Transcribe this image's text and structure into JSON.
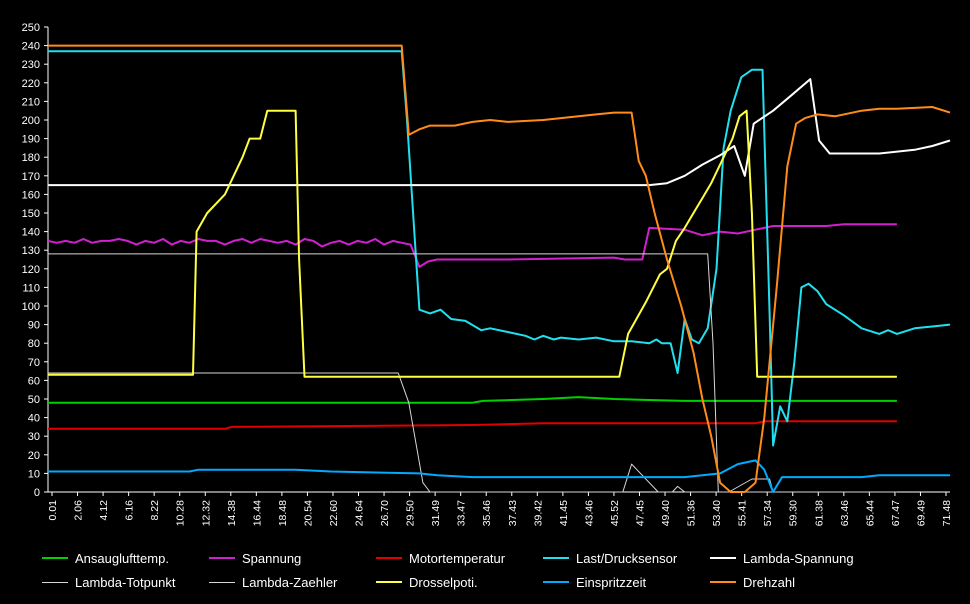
{
  "chart_data": {
    "type": "line",
    "ylim": [
      0,
      250
    ],
    "yticks": [
      0,
      10,
      20,
      30,
      40,
      50,
      60,
      70,
      80,
      90,
      100,
      110,
      120,
      130,
      140,
      150,
      160,
      170,
      180,
      190,
      200,
      210,
      220,
      230,
      240,
      250
    ],
    "grid": false,
    "legend_position": "bottom",
    "xtick_labels": [
      "0.01",
      "2.06",
      "4.12",
      "6.16",
      "8.22",
      "10.28",
      "12.32",
      "14.38",
      "16.44",
      "18.48",
      "20.54",
      "22.60",
      "24.64",
      "26.70",
      "29.50",
      "31.49",
      "33.47",
      "35.46",
      "37.43",
      "39.42",
      "41.45",
      "43.46",
      "45.52",
      "47.45",
      "49.40",
      "51.36",
      "53.40",
      "55.41",
      "57.34",
      "59.30",
      "61.38",
      "63.46",
      "65.44",
      "67.47",
      "69.49",
      "71.48"
    ],
    "series": [
      {
        "name": "Ansaugluftttemp.",
        "color": "#00d000",
        "points": [
          [
            0,
            48
          ],
          [
            24,
            48
          ],
          [
            24.6,
            49
          ],
          [
            28,
            50
          ],
          [
            30,
            51
          ],
          [
            32,
            50
          ],
          [
            36,
            49
          ],
          [
            48,
            49
          ]
        ]
      },
      {
        "name": "Spannung",
        "color": "#d020d0",
        "points": [
          [
            0,
            135
          ],
          [
            0.5,
            134
          ],
          [
            1,
            135
          ],
          [
            1.5,
            134
          ],
          [
            2,
            136
          ],
          [
            2.5,
            134
          ],
          [
            3,
            135
          ],
          [
            3.5,
            135
          ],
          [
            4,
            136
          ],
          [
            4.5,
            135
          ],
          [
            5,
            133
          ],
          [
            5.5,
            135
          ],
          [
            6,
            134
          ],
          [
            6.5,
            136
          ],
          [
            7,
            133
          ],
          [
            7.5,
            135
          ],
          [
            8,
            134
          ],
          [
            8.5,
            136
          ],
          [
            9,
            135
          ],
          [
            9.5,
            135
          ],
          [
            10,
            133
          ],
          [
            10.5,
            135
          ],
          [
            11,
            136
          ],
          [
            11.5,
            134
          ],
          [
            12,
            136
          ],
          [
            12.5,
            135
          ],
          [
            13,
            134
          ],
          [
            13.5,
            135
          ],
          [
            14,
            133
          ],
          [
            14.5,
            136
          ],
          [
            15,
            135
          ],
          [
            15.5,
            132
          ],
          [
            16,
            134
          ],
          [
            16.5,
            135
          ],
          [
            17,
            133
          ],
          [
            17.5,
            135
          ],
          [
            18,
            134
          ],
          [
            18.5,
            136
          ],
          [
            19,
            133
          ],
          [
            19.5,
            135
          ],
          [
            20,
            134
          ],
          [
            20.5,
            133
          ],
          [
            21,
            121
          ],
          [
            21.5,
            124
          ],
          [
            22,
            125
          ],
          [
            26,
            125
          ],
          [
            32,
            126
          ],
          [
            32.6,
            125
          ],
          [
            33.6,
            125
          ],
          [
            34,
            142
          ],
          [
            36,
            141
          ],
          [
            37,
            138
          ],
          [
            38,
            140
          ],
          [
            39,
            139
          ],
          [
            40,
            141
          ],
          [
            41,
            143
          ],
          [
            44,
            143
          ],
          [
            45,
            144
          ],
          [
            48,
            144
          ]
        ]
      },
      {
        "name": "Motortemperatur",
        "color": "#e00000",
        "points": [
          [
            0,
            34
          ],
          [
            10,
            34
          ],
          [
            10.4,
            35
          ],
          [
            24,
            36
          ],
          [
            28,
            37
          ],
          [
            40,
            37
          ],
          [
            40.5,
            38
          ],
          [
            48,
            38
          ]
        ]
      },
      {
        "name": "Last/Drucksensor",
        "color": "#20e0f0",
        "points": [
          [
            0,
            237
          ],
          [
            20,
            237
          ],
          [
            20.3,
            200
          ],
          [
            21,
            98
          ],
          [
            21.6,
            96
          ],
          [
            22.2,
            98
          ],
          [
            22.8,
            93
          ],
          [
            23.6,
            92
          ],
          [
            24.5,
            87
          ],
          [
            25,
            88
          ],
          [
            26,
            86
          ],
          [
            27,
            84
          ],
          [
            27.5,
            82
          ],
          [
            28,
            84
          ],
          [
            28.6,
            82
          ],
          [
            29,
            83
          ],
          [
            30,
            82
          ],
          [
            31,
            83
          ],
          [
            32,
            81
          ],
          [
            33,
            81
          ],
          [
            34,
            80
          ],
          [
            34.4,
            82
          ],
          [
            34.7,
            80
          ],
          [
            35.2,
            80
          ],
          [
            35.6,
            64
          ],
          [
            36,
            93
          ],
          [
            36.4,
            82
          ],
          [
            36.8,
            80
          ],
          [
            37.3,
            88
          ],
          [
            37.8,
            120
          ],
          [
            38.2,
            185
          ],
          [
            38.6,
            205
          ],
          [
            39.2,
            223
          ],
          [
            39.8,
            227
          ],
          [
            40.4,
            227
          ],
          [
            40.8,
            96
          ],
          [
            41,
            25
          ],
          [
            41.4,
            46
          ],
          [
            41.8,
            38
          ],
          [
            42.2,
            70
          ],
          [
            42.6,
            110
          ],
          [
            43,
            112
          ],
          [
            43.5,
            108
          ],
          [
            44,
            101
          ],
          [
            45,
            95
          ],
          [
            46,
            88
          ],
          [
            47,
            85
          ],
          [
            47.5,
            87
          ],
          [
            48,
            85
          ],
          [
            49,
            88
          ],
          [
            50,
            89
          ],
          [
            51,
            90
          ]
        ]
      },
      {
        "name": "Lambda-Spannung",
        "color": "#ffffff",
        "points": [
          [
            0,
            165
          ],
          [
            34,
            165
          ],
          [
            35,
            166
          ],
          [
            36,
            170
          ],
          [
            37,
            176
          ],
          [
            38,
            181
          ],
          [
            38.8,
            186
          ],
          [
            39.4,
            170
          ],
          [
            39.9,
            198
          ],
          [
            41,
            205
          ],
          [
            42,
            213
          ],
          [
            43.1,
            222
          ],
          [
            43.6,
            189
          ],
          [
            44.2,
            182
          ],
          [
            47,
            182
          ],
          [
            49,
            184
          ],
          [
            50,
            186
          ],
          [
            51,
            189
          ]
        ]
      },
      {
        "name": "Lambda-Totpunkt",
        "color": "#d8d8d8",
        "points": [
          [
            0,
            128
          ],
          [
            37.3,
            128
          ],
          [
            37.6,
            80
          ],
          [
            37.9,
            0
          ],
          [
            38.5,
            0
          ],
          [
            39.8,
            7
          ],
          [
            40.8,
            7
          ],
          [
            41,
            0
          ],
          [
            48,
            0
          ]
        ]
      },
      {
        "name": "Lambda-Zaehler",
        "color": "#d8d8d8",
        "points": [
          [
            0,
            64
          ],
          [
            19.8,
            64
          ],
          [
            20.4,
            48
          ],
          [
            21.2,
            5
          ],
          [
            21.6,
            0
          ],
          [
            32.5,
            0
          ],
          [
            33,
            15
          ],
          [
            34.5,
            0
          ],
          [
            35.3,
            0
          ],
          [
            35.6,
            3
          ],
          [
            36,
            0
          ],
          [
            48,
            0
          ]
        ]
      },
      {
        "name": "Drosselpoti.",
        "color": "#ffff40",
        "points": [
          [
            0,
            63
          ],
          [
            8.2,
            63
          ],
          [
            8.4,
            140
          ],
          [
            9,
            150
          ],
          [
            10,
            160
          ],
          [
            11,
            180
          ],
          [
            11.4,
            190
          ],
          [
            12,
            190
          ],
          [
            12.4,
            205
          ],
          [
            14,
            205
          ],
          [
            14.2,
            125
          ],
          [
            14.5,
            62
          ],
          [
            21,
            62
          ],
          [
            32.3,
            62
          ],
          [
            32.8,
            85
          ],
          [
            33.8,
            102
          ],
          [
            34.6,
            117
          ],
          [
            35,
            120
          ],
          [
            35.5,
            135
          ],
          [
            36,
            142
          ],
          [
            36.5,
            150
          ],
          [
            37,
            158
          ],
          [
            37.5,
            166
          ],
          [
            38,
            176
          ],
          [
            38.7,
            190
          ],
          [
            39.1,
            202
          ],
          [
            39.5,
            205
          ],
          [
            39.8,
            150
          ],
          [
            40.1,
            62
          ],
          [
            48,
            62
          ]
        ]
      },
      {
        "name": "Einspritzzeit",
        "color": "#00aaff",
        "points": [
          [
            0,
            11
          ],
          [
            8,
            11
          ],
          [
            8.5,
            12
          ],
          [
            14,
            12
          ],
          [
            16,
            11
          ],
          [
            21,
            10
          ],
          [
            22,
            9
          ],
          [
            24,
            8
          ],
          [
            36,
            8
          ],
          [
            37,
            9
          ],
          [
            38,
            10
          ],
          [
            39,
            15
          ],
          [
            40,
            17
          ],
          [
            40.5,
            12
          ],
          [
            41,
            0
          ],
          [
            41.5,
            8
          ],
          [
            44,
            8
          ],
          [
            46,
            8
          ],
          [
            47,
            9
          ],
          [
            51,
            9
          ]
        ]
      },
      {
        "name": "Drehzahl",
        "color": "#ff8c1a",
        "points": [
          [
            0,
            240
          ],
          [
            20,
            240
          ],
          [
            20.4,
            192
          ],
          [
            21,
            195
          ],
          [
            21.6,
            197
          ],
          [
            23,
            197
          ],
          [
            24,
            199
          ],
          [
            25,
            200
          ],
          [
            26,
            199
          ],
          [
            28,
            200
          ],
          [
            29,
            201
          ],
          [
            30,
            202
          ],
          [
            31,
            203
          ],
          [
            32,
            204
          ],
          [
            33,
            204
          ],
          [
            33.4,
            178
          ],
          [
            33.8,
            170
          ],
          [
            34.3,
            150
          ],
          [
            35,
            125
          ],
          [
            35.8,
            100
          ],
          [
            36.5,
            75
          ],
          [
            37,
            50
          ],
          [
            37.5,
            30
          ],
          [
            38,
            5
          ],
          [
            38.6,
            0
          ],
          [
            39.4,
            0
          ],
          [
            40,
            5
          ],
          [
            40.5,
            40
          ],
          [
            41.2,
            110
          ],
          [
            41.8,
            175
          ],
          [
            42.3,
            198
          ],
          [
            42.8,
            201
          ],
          [
            43.5,
            203
          ],
          [
            44.5,
            202
          ],
          [
            46,
            205
          ],
          [
            47,
            206
          ],
          [
            48,
            206
          ],
          [
            50,
            207
          ],
          [
            51,
            204
          ]
        ]
      }
    ],
    "xmax": 51
  },
  "legend": [
    {
      "label": "Ansauglufttemp.",
      "color": "#00d000"
    },
    {
      "label": "Spannung",
      "color": "#d020d0"
    },
    {
      "label": "Motortemperatur",
      "color": "#e00000"
    },
    {
      "label": "Last/Drucksensor",
      "color": "#20e0f0"
    },
    {
      "label": "Lambda-Spannung",
      "color": "#ffffff"
    },
    {
      "label": "Lambda-Totpunkt",
      "color": "#d8d8d8"
    },
    {
      "label": "Lambda-Zaehler",
      "color": "#d8d8d8"
    },
    {
      "label": "Drosselpoti.",
      "color": "#ffff40"
    },
    {
      "label": "Einspritzzeit",
      "color": "#00aaff"
    },
    {
      "label": "Drehzahl",
      "color": "#ff8c1a"
    }
  ]
}
